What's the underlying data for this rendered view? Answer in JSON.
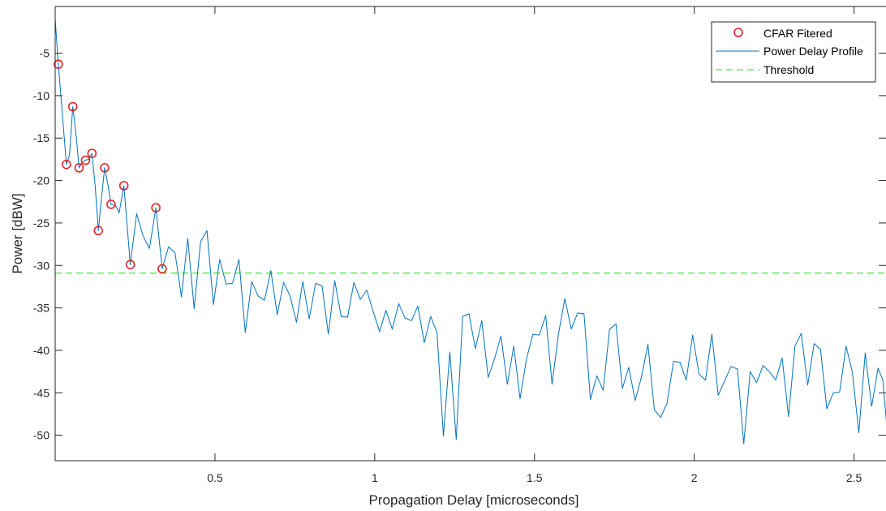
{
  "chart_data": {
    "type": "line",
    "xlabel": "Propagation Delay [microseconds]",
    "ylabel": "Power [dBW]",
    "xlim": [
      0,
      2.6
    ],
    "ylim": [
      -53,
      0.5
    ],
    "xticks": [
      0.5,
      1,
      1.5,
      2,
      2.5
    ],
    "xtick_labels": [
      "0.5",
      "1",
      "1.5",
      "2",
      "2.5"
    ],
    "yticks": [
      -5,
      -10,
      -15,
      -20,
      -25,
      -30,
      -35,
      -40,
      -45,
      -50
    ],
    "ytick_labels": [
      "-5",
      "-10",
      "-15",
      "-20",
      "-25",
      "-30",
      "-35",
      "-40",
      "-45",
      "-50"
    ],
    "grid": false,
    "legend_position": "top-right",
    "colors": {
      "profile": "#0072bd",
      "threshold": "#4ee84e",
      "cfar": "#e41a1c"
    },
    "series": [
      {
        "name": "CFAR Fitered",
        "style": "markers",
        "points": [
          [
            0.01,
            -6.3
          ],
          [
            0.035,
            -18.1
          ],
          [
            0.055,
            -11.3
          ],
          [
            0.075,
            -18.5
          ],
          [
            0.095,
            -17.6
          ],
          [
            0.115,
            -16.8
          ],
          [
            0.135,
            -25.9
          ],
          [
            0.155,
            -18.5
          ],
          [
            0.175,
            -22.8
          ],
          [
            0.215,
            -20.6
          ],
          [
            0.235,
            -29.9
          ],
          [
            0.315,
            -23.2
          ],
          [
            0.335,
            -30.4
          ]
        ]
      },
      {
        "name": "Power Delay Profile",
        "style": "line",
        "points": [
          [
            0.0,
            -1.0
          ],
          [
            0.01,
            -6.3
          ],
          [
            0.02,
            -11.0
          ],
          [
            0.035,
            -18.1
          ],
          [
            0.045,
            -17.0
          ],
          [
            0.055,
            -11.3
          ],
          [
            0.065,
            -14.5
          ],
          [
            0.075,
            -18.5
          ],
          [
            0.085,
            -17.8
          ],
          [
            0.095,
            -17.6
          ],
          [
            0.105,
            -17.5
          ],
          [
            0.115,
            -16.8
          ],
          [
            0.125,
            -20.5
          ],
          [
            0.135,
            -25.9
          ],
          [
            0.145,
            -22.0
          ],
          [
            0.155,
            -18.5
          ],
          [
            0.165,
            -20.5
          ],
          [
            0.175,
            -22.8
          ],
          [
            0.19,
            -23.0
          ],
          [
            0.2,
            -23.8
          ],
          [
            0.215,
            -20.6
          ],
          [
            0.235,
            -29.9
          ],
          [
            0.255,
            -23.9
          ],
          [
            0.275,
            -26.5
          ],
          [
            0.295,
            -28.0
          ],
          [
            0.315,
            -23.2
          ],
          [
            0.335,
            -30.4
          ],
          [
            0.355,
            -27.8
          ],
          [
            0.375,
            -28.5
          ],
          [
            0.395,
            -33.7
          ],
          [
            0.415,
            -26.8
          ],
          [
            0.435,
            -35.1
          ],
          [
            0.455,
            -27.2
          ],
          [
            0.475,
            -25.9
          ],
          [
            0.495,
            -34.6
          ],
          [
            0.515,
            -29.3
          ],
          [
            0.535,
            -32.2
          ],
          [
            0.555,
            -32.1
          ],
          [
            0.575,
            -29.3
          ],
          [
            0.595,
            -37.9
          ],
          [
            0.615,
            -31.9
          ],
          [
            0.635,
            -33.6
          ],
          [
            0.655,
            -34.1
          ],
          [
            0.675,
            -30.6
          ],
          [
            0.695,
            -35.8
          ],
          [
            0.715,
            -32.0
          ],
          [
            0.735,
            -33.6
          ],
          [
            0.755,
            -36.7
          ],
          [
            0.775,
            -31.9
          ],
          [
            0.795,
            -36.3
          ],
          [
            0.815,
            -32.1
          ],
          [
            0.835,
            -32.4
          ],
          [
            0.855,
            -38.1
          ],
          [
            0.875,
            -31.8
          ],
          [
            0.895,
            -36.0
          ],
          [
            0.915,
            -36.1
          ],
          [
            0.935,
            -32.0
          ],
          [
            0.955,
            -34.0
          ],
          [
            0.975,
            -32.9
          ],
          [
            0.995,
            -35.4
          ],
          [
            1.015,
            -37.8
          ],
          [
            1.035,
            -35.3
          ],
          [
            1.055,
            -37.5
          ],
          [
            1.075,
            -34.5
          ],
          [
            1.095,
            -36.2
          ],
          [
            1.115,
            -36.5
          ],
          [
            1.135,
            -34.8
          ],
          [
            1.155,
            -39.1
          ],
          [
            1.175,
            -36.0
          ],
          [
            1.195,
            -37.9
          ],
          [
            1.215,
            -50.1
          ],
          [
            1.235,
            -40.2
          ],
          [
            1.255,
            -50.5
          ],
          [
            1.275,
            -36.0
          ],
          [
            1.295,
            -35.7
          ],
          [
            1.315,
            -39.8
          ],
          [
            1.335,
            -36.5
          ],
          [
            1.355,
            -43.2
          ],
          [
            1.375,
            -41.0
          ],
          [
            1.395,
            -38.3
          ],
          [
            1.415,
            -44.0
          ],
          [
            1.435,
            -39.5
          ],
          [
            1.455,
            -45.7
          ],
          [
            1.475,
            -41.0
          ],
          [
            1.495,
            -38.1
          ],
          [
            1.515,
            -38.2
          ],
          [
            1.535,
            -35.9
          ],
          [
            1.555,
            -44.0
          ],
          [
            1.575,
            -38.1
          ],
          [
            1.595,
            -33.9
          ],
          [
            1.615,
            -37.5
          ],
          [
            1.635,
            -35.6
          ],
          [
            1.655,
            -35.7
          ],
          [
            1.675,
            -45.8
          ],
          [
            1.695,
            -43.0
          ],
          [
            1.715,
            -44.7
          ],
          [
            1.735,
            -37.5
          ],
          [
            1.755,
            -36.9
          ],
          [
            1.775,
            -44.5
          ],
          [
            1.795,
            -42.0
          ],
          [
            1.815,
            -45.9
          ],
          [
            1.835,
            -43.1
          ],
          [
            1.855,
            -39.3
          ],
          [
            1.875,
            -47.0
          ],
          [
            1.895,
            -47.9
          ],
          [
            1.915,
            -46.2
          ],
          [
            1.935,
            -41.3
          ],
          [
            1.955,
            -41.4
          ],
          [
            1.975,
            -43.5
          ],
          [
            1.995,
            -38.2
          ],
          [
            2.015,
            -42.8
          ],
          [
            2.035,
            -43.5
          ],
          [
            2.055,
            -38.1
          ],
          [
            2.075,
            -45.3
          ],
          [
            2.095,
            -43.6
          ],
          [
            2.115,
            -41.9
          ],
          [
            2.135,
            -42.2
          ],
          [
            2.155,
            -51.0
          ],
          [
            2.175,
            -42.5
          ],
          [
            2.195,
            -43.8
          ],
          [
            2.215,
            -41.8
          ],
          [
            2.235,
            -42.5
          ],
          [
            2.255,
            -43.5
          ],
          [
            2.275,
            -40.9
          ],
          [
            2.295,
            -47.8
          ],
          [
            2.315,
            -39.5
          ],
          [
            2.335,
            -38.0
          ],
          [
            2.355,
            -44.1
          ],
          [
            2.375,
            -39.2
          ],
          [
            2.395,
            -39.9
          ],
          [
            2.415,
            -46.9
          ],
          [
            2.435,
            -45.0
          ],
          [
            2.455,
            -44.9
          ],
          [
            2.475,
            -39.5
          ],
          [
            2.495,
            -42.6
          ],
          [
            2.515,
            -49.7
          ],
          [
            2.535,
            -40.3
          ],
          [
            2.555,
            -46.6
          ],
          [
            2.575,
            -42.1
          ],
          [
            2.59,
            -43.5
          ],
          [
            2.605,
            -50.1
          ]
        ]
      },
      {
        "name": "Threshold",
        "style": "dashed",
        "value": -30.9
      }
    ]
  }
}
